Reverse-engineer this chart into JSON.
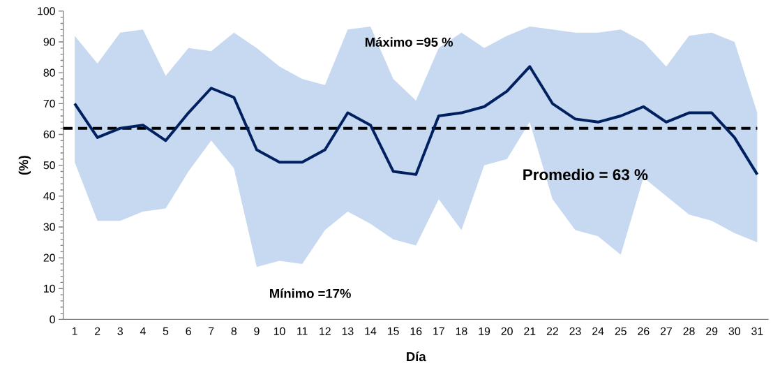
{
  "chart_data": {
    "type": "line",
    "xlabel": "Día",
    "ylabel": "(%)",
    "categories": [
      "1",
      "2",
      "3",
      "4",
      "5",
      "6",
      "7",
      "8",
      "9",
      "10",
      "11",
      "12",
      "13",
      "14",
      "15",
      "16",
      "17",
      "18",
      "19",
      "20",
      "21",
      "22",
      "23",
      "24",
      "25",
      "26",
      "27",
      "28",
      "29",
      "30",
      "31"
    ],
    "series": [
      {
        "color": "#002060",
        "values": [
          70,
          59,
          62,
          63,
          58,
          67,
          75,
          72,
          55,
          51,
          51,
          55,
          67,
          63,
          48,
          47,
          66,
          67,
          69,
          74,
          82,
          70,
          65,
          64,
          66,
          69,
          64,
          67,
          67,
          59,
          47
        ],
        "lower": [
          51,
          32,
          32,
          35,
          36,
          48,
          58,
          49,
          17,
          19,
          18,
          29,
          35,
          31,
          26,
          24,
          39,
          29,
          50,
          52,
          64,
          39,
          29,
          27,
          21,
          46,
          40,
          34,
          32,
          28,
          25
        ],
        "upper": [
          92,
          83,
          93,
          94,
          79,
          88,
          87,
          93,
          88,
          82,
          78,
          76,
          94,
          95,
          78,
          71,
          88,
          93,
          88,
          92,
          95,
          94,
          93,
          93,
          94,
          90,
          82,
          92,
          93,
          90,
          67
        ]
      }
    ],
    "ref_lines": [
      {
        "axis": "y",
        "value": 62,
        "color": "#000000",
        "line_style": "dashed"
      }
    ],
    "annotations": [
      "Máximo =95  %",
      "Promedio = 63 %",
      "Mínimo =17%"
    ],
    "ylim": [
      0,
      100
    ],
    "yticks": [
      0,
      10,
      20,
      30,
      40,
      50,
      60,
      70,
      80,
      90,
      100
    ],
    "grid": false,
    "line_style": "solid",
    "marker": "none"
  }
}
